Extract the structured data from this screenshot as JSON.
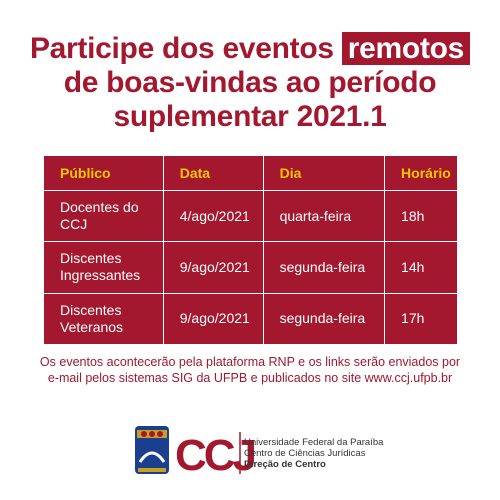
{
  "title": {
    "line1": "Participe dos eventos",
    "highlight": "remotos",
    "line2": "de boas-vindas ao período",
    "line3": "suplementar 2021.1"
  },
  "table": {
    "header": [
      "Público",
      "Data",
      "Dia",
      "Horário"
    ],
    "rows": [
      [
        "Docentes do CCJ",
        "4/ago/2021",
        "quarta-feira",
        "18h"
      ],
      [
        "Discentes Ingressantes",
        "9/ago/2021",
        "segunda-feira",
        "14h"
      ],
      [
        "Discentes Veteranos",
        "9/ago/2021",
        "segunda-feira",
        "17h"
      ]
    ]
  },
  "footer": {
    "lines": [
      "Os eventos acontecerão pela plataforma RNP e os links serão enviados por",
      "e-mail pelos sistemas SIG da UFPB e publicados no site www.ccj.ufpb.br"
    ]
  },
  "logo": {
    "mark": "CCJ",
    "lines": [
      "Universidade Federal da Paraíba",
      "Centro de Ciências Jurídicas",
      "Direção de Centro"
    ]
  }
}
